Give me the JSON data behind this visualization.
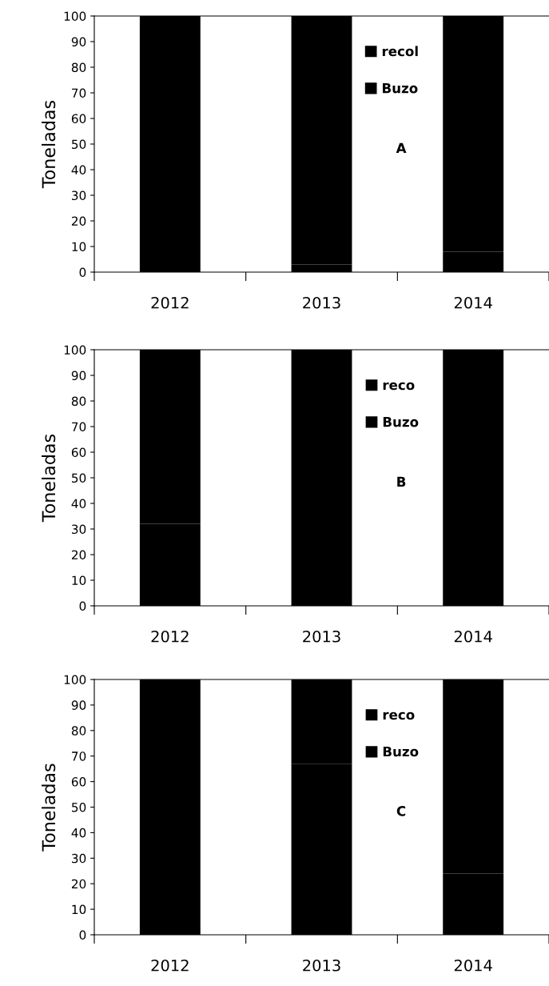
{
  "chart_data": [
    {
      "type": "bar",
      "stacked": true,
      "categories": [
        "2012",
        "2013",
        "2014"
      ],
      "ylabel": "Toneladas",
      "ylim": [
        0,
        100
      ],
      "yticks": [
        0,
        10,
        20,
        30,
        40,
        50,
        60,
        70,
        80,
        90,
        100
      ],
      "legend": "top right",
      "annotations": [
        "A"
      ],
      "series": [
        {
          "name": "Buzo",
          "color": "#000000",
          "values": [
            5,
            3,
            8
          ]
        },
        {
          "name": "recol",
          "color": "#000000",
          "values": [
            95,
            97,
            92
          ]
        }
      ]
    },
    {
      "type": "bar",
      "stacked": true,
      "categories": [
        "2012",
        "2013",
        "2014"
      ],
      "ylabel": "Toneladas",
      "ylim": [
        0,
        100
      ],
      "yticks": [
        0,
        10,
        20,
        30,
        40,
        50,
        60,
        70,
        80,
        90,
        100
      ],
      "legend": "top right",
      "annotations": [
        "B"
      ],
      "series": [
        {
          "name": "Buzo",
          "color": "#000000",
          "values": [
            32,
            10,
            45
          ]
        },
        {
          "name": "reco",
          "color": "#000000",
          "values": [
            68,
            90,
            55
          ]
        }
      ]
    },
    {
      "type": "bar",
      "stacked": true,
      "categories": [
        "2012",
        "2013",
        "2014"
      ],
      "ylabel": "Toneladas",
      "ylim": [
        0,
        100
      ],
      "yticks": [
        0,
        10,
        20,
        30,
        40,
        50,
        60,
        70,
        80,
        90,
        100
      ],
      "legend": "top right",
      "annotations": [
        "C"
      ],
      "series": [
        {
          "name": "Buzo",
          "color": "#000000",
          "values": [
            37,
            67,
            24
          ]
        },
        {
          "name": "reco",
          "color": "#000000",
          "values": [
            63,
            33,
            76
          ]
        }
      ]
    }
  ]
}
